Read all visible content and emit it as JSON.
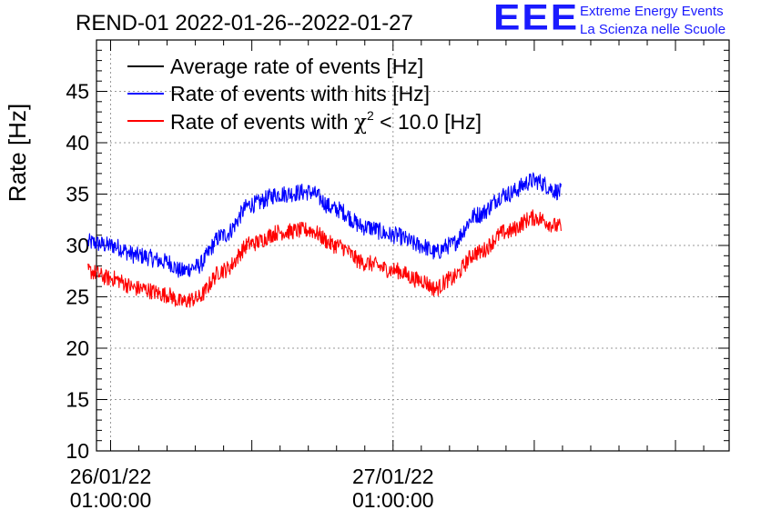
{
  "chart_data": {
    "type": "line",
    "title": "REND-01 2022-01-26--2022-01-27",
    "ylabel": "Rate [Hz]",
    "xlabel": "",
    "ylim": [
      10,
      50
    ],
    "xlim_hours": [
      -1.0,
      43.8
    ],
    "y_ticks": [
      10,
      15,
      20,
      25,
      30,
      35,
      40,
      45
    ],
    "x_ticks": [
      {
        "hour": 0,
        "date": "26/01/22",
        "time": "01:00:00"
      },
      {
        "hour": 20,
        "date": "27/01/22",
        "time": "01:00:00"
      }
    ],
    "grid": true,
    "legend_position": "top-left",
    "series": [
      {
        "name": "Average rate of events [Hz]",
        "color": "#000000",
        "hours": [],
        "values": []
      },
      {
        "name": "Rate of events with hits [Hz]",
        "color": "#0000ff",
        "noise": 0.85,
        "hours": [
          -1.6,
          0,
          2,
          4,
          5,
          6,
          8,
          10,
          12,
          14,
          16,
          18,
          20,
          22,
          23,
          24,
          26,
          28,
          30,
          31.9
        ],
        "values": [
          30.3,
          30.0,
          29.0,
          28.4,
          27.5,
          27.9,
          31.0,
          34.0,
          35.0,
          35.2,
          33.5,
          31.8,
          31.0,
          30.0,
          29.3,
          30.0,
          33.0,
          35.0,
          36.3,
          35.2
        ]
      },
      {
        "name": "Rate of events with χ² < 10.0 [Hz]",
        "color": "#ff0000",
        "noise": 0.8,
        "hours": [
          -1.6,
          0,
          2,
          4,
          5,
          6,
          8,
          10,
          12,
          14,
          16,
          18,
          20,
          22,
          23,
          24,
          26,
          28,
          30,
          31.9
        ],
        "values": [
          27.5,
          26.8,
          25.8,
          25.2,
          24.5,
          24.8,
          27.6,
          30.2,
          31.3,
          31.5,
          30.0,
          28.3,
          27.6,
          26.6,
          25.8,
          26.7,
          29.3,
          31.3,
          32.7,
          31.8
        ]
      }
    ]
  },
  "legend": {
    "avg": "Average rate of events [Hz]",
    "hits": "Rate of events with hits [Hz]",
    "chi_prefix": "Rate of events with ",
    "chi_symbol": "χ",
    "chi_sup": "2",
    "chi_suffix": " < 10.0 [Hz]"
  },
  "logo": {
    "text": "EEE",
    "line1": "Extreme Energy Events",
    "line2": "La Scienza nelle Scuole"
  }
}
